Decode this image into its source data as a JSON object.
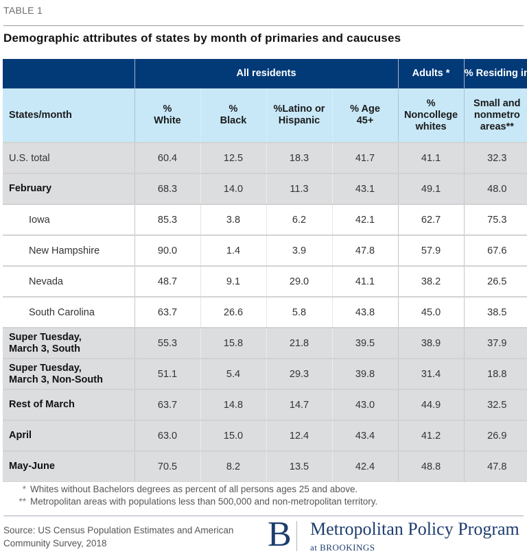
{
  "header": {
    "table_label": "TABLE 1",
    "title": "Demographic attributes of states by month of primaries and caucuses"
  },
  "table": {
    "group_headers": {
      "all_residents": "All residents",
      "adults": "Adults *",
      "residing": "% Residing in"
    },
    "columns": [
      "States/month",
      "% White",
      "% Black",
      "%Latino or Hispanic",
      "% Age 45+",
      "% Noncollege whites",
      "Small and nonmetro areas**"
    ],
    "rows": [
      {
        "label": "U.S. total",
        "values": [
          "60.4",
          "12.5",
          "18.3",
          "41.7",
          "41.1",
          "32.3"
        ]
      },
      {
        "label": "February",
        "values": [
          "68.3",
          "14.0",
          "11.3",
          "43.1",
          "49.1",
          "48.0"
        ]
      },
      {
        "label": "Iowa",
        "values": [
          "85.3",
          "3.8",
          "6.2",
          "42.1",
          "62.7",
          "75.3"
        ]
      },
      {
        "label": "New Hampshire",
        "values": [
          "90.0",
          "1.4",
          "3.9",
          "47.8",
          "57.9",
          "67.6"
        ]
      },
      {
        "label": "Nevada",
        "values": [
          "48.7",
          "9.1",
          "29.0",
          "41.1",
          "38.2",
          "26.5"
        ]
      },
      {
        "label": "South Carolina",
        "values": [
          "63.7",
          "26.6",
          "5.8",
          "43.8",
          "45.0",
          "38.5"
        ]
      },
      {
        "label": "Super Tuesday, March 3, South",
        "values": [
          "55.3",
          "15.8",
          "21.8",
          "39.5",
          "38.9",
          "37.9"
        ]
      },
      {
        "label": "Super Tuesday, March 3, Non-South",
        "values": [
          "51.1",
          "5.4",
          "29.3",
          "39.8",
          "31.4",
          "18.8"
        ]
      },
      {
        "label": "Rest of March",
        "values": [
          "63.7",
          "14.8",
          "14.7",
          "43.0",
          "44.9",
          "32.5"
        ]
      },
      {
        "label": "April",
        "values": [
          "63.0",
          "15.0",
          "12.4",
          "43.4",
          "41.2",
          "26.9"
        ]
      },
      {
        "label": "May-June",
        "values": [
          "70.5",
          "8.2",
          "13.5",
          "42.4",
          "48.8",
          "47.8"
        ]
      }
    ]
  },
  "notes": [
    {
      "mark": "*",
      "text": "Whites without Bachelors degrees as percent of all persons ages 25 and above."
    },
    {
      "mark": "**",
      "text": "Metropolitan areas with populations less than 500,000 and non-metropolitan territory."
    }
  ],
  "footer": {
    "source": "Source: US Census Population Estimates and American Community Survey, 2018",
    "logo_letter": "B",
    "logo_name": "Metropolitan Policy Program",
    "logo_sub": "at BROOKINGS"
  },
  "colors": {
    "header_dark": "#023a78",
    "header_light": "#c8e8f8",
    "row_shade": "#dcdddf"
  }
}
